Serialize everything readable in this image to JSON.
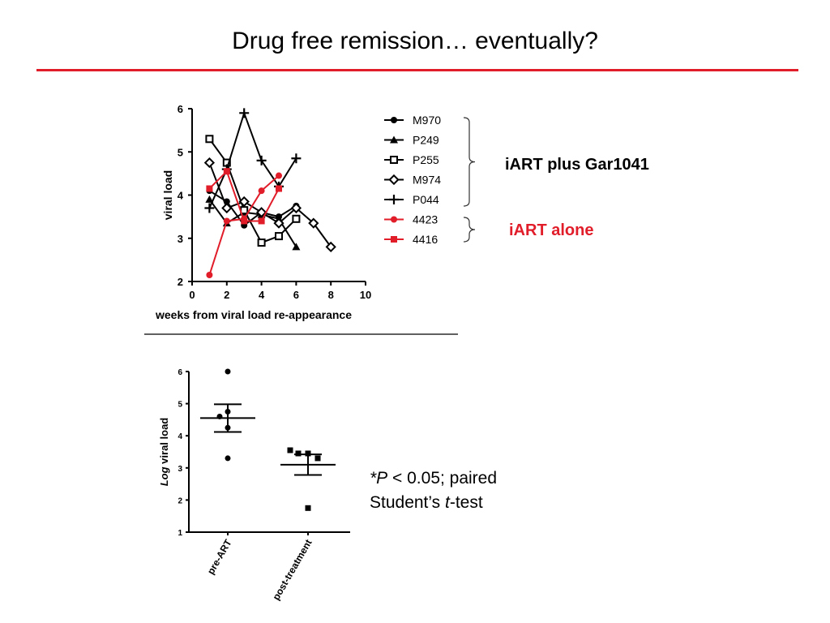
{
  "slide": {
    "title": "Drug free remission… eventually?",
    "title_rule_color": "#e11d2a",
    "group_plus_label": "iART plus Gar1041",
    "group_alone_label": "iART alone",
    "group_alone_color": "#e11d2a",
    "stat_note": {
      "line1_star_p": "*P",
      "line1_rest": " < 0.05; paired",
      "line2_pre": "Student’s ",
      "line2_t": "t",
      "line2_post": "-test"
    }
  },
  "chart_data": [
    {
      "type": "line",
      "xlabel": "weeks from viral load re-appearance",
      "ylabel": "viral load",
      "xlim": [
        0,
        10
      ],
      "ylim": [
        2,
        6
      ],
      "xticks": [
        0,
        2,
        4,
        6,
        8,
        10
      ],
      "yticks": [
        2,
        3,
        4,
        5,
        6
      ],
      "legend_position": "right",
      "series": [
        {
          "name": "M970",
          "marker": "circle",
          "color": "#000000",
          "x": [
            1,
            2,
            3,
            4,
            5,
            6
          ],
          "y": [
            4.1,
            3.85,
            3.3,
            3.6,
            3.5,
            3.75
          ]
        },
        {
          "name": "P249",
          "marker": "triangle",
          "color": "#000000",
          "x": [
            1,
            2,
            3,
            4,
            5,
            6
          ],
          "y": [
            3.9,
            3.35,
            3.6,
            3.55,
            3.45,
            2.8
          ]
        },
        {
          "name": "P255",
          "marker": "square-open",
          "color": "#000000",
          "x": [
            1,
            2,
            3,
            4,
            5,
            6
          ],
          "y": [
            5.3,
            4.75,
            3.65,
            2.9,
            3.05,
            3.45
          ]
        },
        {
          "name": "M974",
          "marker": "diamond-open",
          "color": "#000000",
          "x": [
            1,
            2,
            3,
            4,
            5,
            6,
            7,
            8
          ],
          "y": [
            4.75,
            3.7,
            3.85,
            3.6,
            3.35,
            3.7,
            3.35,
            2.8
          ]
        },
        {
          "name": "P044",
          "marker": "plus",
          "color": "#000000",
          "x": [
            1,
            2,
            3,
            4,
            5,
            6
          ],
          "y": [
            3.7,
            4.6,
            5.9,
            4.8,
            4.2,
            4.85
          ]
        },
        {
          "name": "4423",
          "marker": "circle",
          "color": "#e11d2a",
          "x": [
            1,
            2,
            3,
            4,
            5
          ],
          "y": [
            2.15,
            3.4,
            3.45,
            4.1,
            4.45
          ]
        },
        {
          "name": "4416",
          "marker": "square",
          "color": "#e11d2a",
          "x": [
            1,
            2,
            3,
            4,
            5
          ],
          "y": [
            4.15,
            4.55,
            3.4,
            3.4,
            4.15
          ]
        }
      ]
    },
    {
      "type": "scatter",
      "ylabel_italic": "Log",
      "ylabel_rest": " viral load",
      "ylim": [
        1,
        6
      ],
      "yticks": [
        1,
        2,
        3,
        4,
        5,
        6
      ],
      "categories": [
        "pre-ART",
        "post-treatment"
      ],
      "series": [
        {
          "category": "pre-ART",
          "marker": "circle",
          "values": [
            6.0,
            4.75,
            4.6,
            4.25,
            3.3
          ],
          "mean": 4.55,
          "sem": [
            4.12,
            4.98
          ]
        },
        {
          "category": "post-treatment",
          "marker": "square",
          "values": [
            3.55,
            3.45,
            3.45,
            3.3,
            1.75
          ],
          "mean": 3.1,
          "sem": [
            2.78,
            3.42
          ]
        }
      ]
    }
  ]
}
